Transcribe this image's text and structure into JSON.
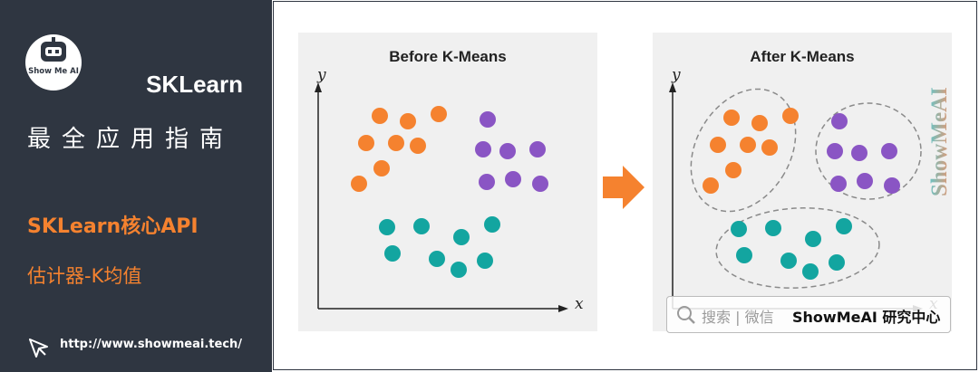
{
  "sidebar": {
    "logo_text": "Show Me AI",
    "title": "SKLearn",
    "subtitle": "最全应用指南",
    "section": "SKLearn核心API",
    "topic": "估计器-K均值",
    "url": "http://www.showmeai.tech/"
  },
  "before_panel": {
    "title": "Before K-Means",
    "xlabel": "x",
    "ylabel": "y"
  },
  "after_panel": {
    "title": "After K-Means",
    "xlabel": "x",
    "ylabel": "y"
  },
  "watermark": {
    "vertical": "ShowMeAI",
    "search_text": "搜索 | 微信",
    "brand": "ShowMeAI 研究中心"
  },
  "colors": {
    "orange": "#f5822f",
    "purple": "#8a55c4",
    "teal": "#13a5a0",
    "sidebar_bg": "#2f3641",
    "panel_bg": "#f0f0f0"
  },
  "icons": [
    "robot-logo-icon",
    "cursor-icon",
    "search-icon",
    "right-arrow-icon"
  ],
  "clusters": [
    {
      "color": "orange",
      "points": [
        [
          90,
          92
        ],
        [
          121,
          98
        ],
        [
          155,
          90
        ],
        [
          75,
          122
        ],
        [
          108,
          122
        ],
        [
          132,
          125
        ],
        [
          92,
          150
        ],
        [
          67,
          167
        ]
      ]
    },
    {
      "color": "purple",
      "points": [
        [
          209,
          96
        ],
        [
          204,
          129
        ],
        [
          231,
          131
        ],
        [
          264,
          129
        ],
        [
          208,
          165
        ],
        [
          237,
          162
        ],
        [
          267,
          167
        ]
      ]
    },
    {
      "color": "teal",
      "points": [
        [
          98,
          215
        ],
        [
          136,
          214
        ],
        [
          214,
          212
        ],
        [
          104,
          244
        ],
        [
          153,
          250
        ],
        [
          180,
          226
        ],
        [
          177,
          262
        ],
        [
          206,
          252
        ]
      ]
    }
  ]
}
